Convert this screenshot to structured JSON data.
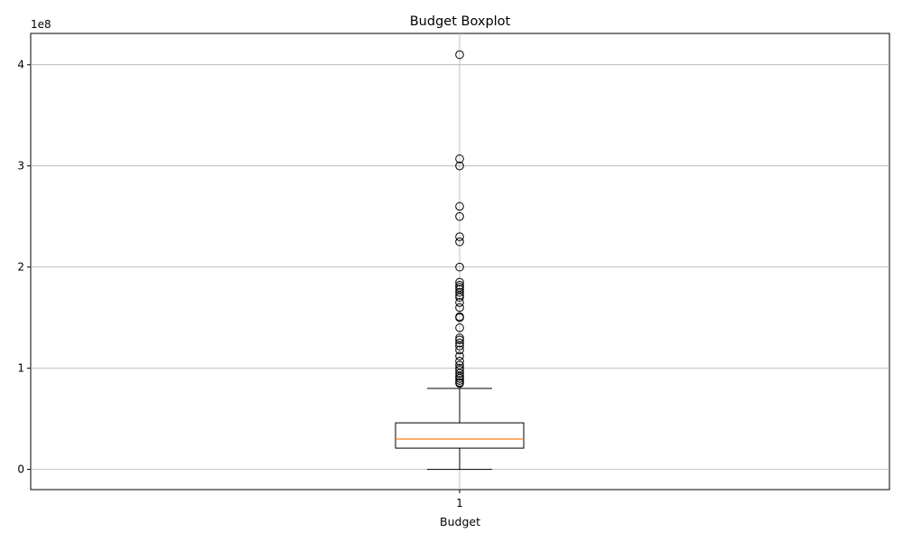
{
  "chart_data": {
    "type": "boxplot",
    "title": "Budget Boxplot",
    "xlabel": "Budget",
    "ylabel": "",
    "y_scale_label": "1e8",
    "x_tick_labels": [
      "1"
    ],
    "y_ticks": [
      {
        "value": 0,
        "label": "0"
      },
      {
        "value": 100000000,
        "label": "1"
      },
      {
        "value": 200000000,
        "label": "2"
      },
      {
        "value": 300000000,
        "label": "3"
      },
      {
        "value": 400000000,
        "label": "4"
      }
    ],
    "ylim": [
      -20000000,
      431000000
    ],
    "grid": true,
    "boxes": [
      {
        "category": "1",
        "whisker_low": 0,
        "q1": 21000000,
        "median": 30000000,
        "q3": 46000000,
        "whisker_high": 80000000,
        "outliers": [
          85000000,
          86000000,
          88000000,
          90000000,
          92000000,
          95000000,
          98000000,
          100000000,
          103000000,
          107000000,
          112000000,
          118000000,
          122000000,
          125000000,
          128000000,
          130000000,
          140000000,
          150000000,
          151000000,
          160000000,
          165000000,
          170000000,
          172000000,
          175000000,
          178000000,
          180000000,
          182000000,
          185000000,
          200000000,
          225000000,
          230000000,
          250000000,
          260000000,
          300000000,
          307000000,
          410000000
        ]
      }
    ],
    "colors": {
      "box": "#000000",
      "median": "#ff7f0e",
      "grid": "#b0b0b0"
    }
  }
}
